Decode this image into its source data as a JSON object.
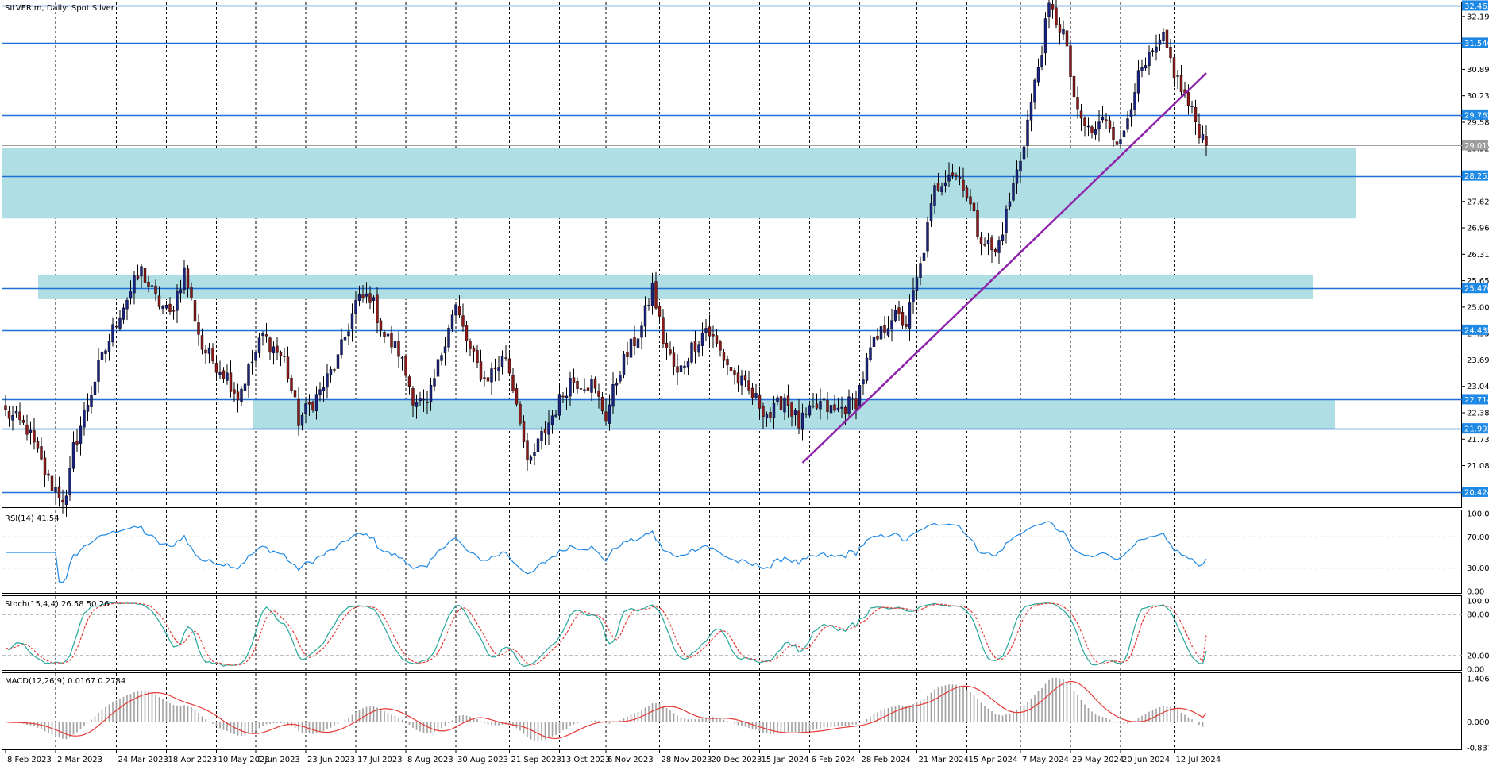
{
  "window_title": "SILVER.m, Daily:  Spot Silver",
  "colors": {
    "background": "#ffffff",
    "grid": "#000000",
    "zone": "#b0dee5",
    "level_line": "#1e6fd6",
    "level_label_bg": "#1e88e5",
    "current_line": "#9e9e9e",
    "trendline": "#8e24aa",
    "bull": "#1a237e",
    "bear": "#8b1a1a",
    "rsi_line": "#1e88e5",
    "stoch_main": "#26a69a",
    "stoch_signal": "#e53935",
    "macd_hist": "#a0a0a0",
    "macd_signal": "#e53935"
  },
  "main_panel": {
    "price_ticks": [
      "32.199",
      "30.891",
      "30.237",
      "29.583",
      "28.929",
      "27.621",
      "26.967",
      "26.313",
      "25.659",
      "25.005",
      "24.351",
      "23.697",
      "23.043",
      "22.389",
      "21.735",
      "21.081"
    ],
    "levels": [
      {
        "price": 32.463,
        "label": "32.463"
      },
      {
        "price": 31.54,
        "label": "31.540"
      },
      {
        "price": 29.762,
        "label": "29.762"
      },
      {
        "price": 28.253,
        "label": "28.253"
      },
      {
        "price": 25.47,
        "label": "25.470"
      },
      {
        "price": 24.435,
        "label": "24.435"
      },
      {
        "price": 22.714,
        "label": "22.714"
      },
      {
        "price": 21.993,
        "label": "21.993"
      },
      {
        "price": 20.424,
        "label": "20.424"
      }
    ],
    "current_price": {
      "price": 29.013,
      "label": "29.013"
    },
    "zones": [
      {
        "from_bar": 0,
        "to_bar": 378,
        "top": 28.95,
        "bottom": 27.2
      },
      {
        "from_bar": 10,
        "to_bar": 366,
        "top": 25.8,
        "bottom": 25.2
      },
      {
        "from_bar": 70,
        "to_bar": 372,
        "top": 22.714,
        "bottom": 21.993
      }
    ],
    "trendline": {
      "from_bar": 223,
      "from_price": 21.15,
      "to_bar": 336,
      "to_price": 30.8
    }
  },
  "x_axis": {
    "labels": [
      {
        "bar": 0,
        "text": "8 Feb 2023"
      },
      {
        "bar": 14,
        "text": "2 Mar 2023"
      },
      {
        "bar": 31,
        "text": "24 Mar 2023"
      },
      {
        "bar": 45,
        "text": "18 Apr 2023"
      },
      {
        "bar": 59,
        "text": "10 May 2023"
      },
      {
        "bar": 70,
        "text": "1 Jun 2023"
      },
      {
        "bar": 84,
        "text": "23 Jun 2023"
      },
      {
        "bar": 98,
        "text": "17 Jul 2023"
      },
      {
        "bar": 112,
        "text": "8 Aug 2023"
      },
      {
        "bar": 126,
        "text": "30 Aug 2023"
      },
      {
        "bar": 141,
        "text": "21 Sep 2023"
      },
      {
        "bar": 155,
        "text": "13 Oct 2023"
      },
      {
        "bar": 168,
        "text": "6 Nov 2023"
      },
      {
        "bar": 183,
        "text": "28 Nov 2023"
      },
      {
        "bar": 197,
        "text": "20 Dec 2023"
      },
      {
        "bar": 211,
        "text": "15 Jan 2024"
      },
      {
        "bar": 225,
        "text": "6 Feb 2024"
      },
      {
        "bar": 239,
        "text": "28 Feb 2024"
      },
      {
        "bar": 255,
        "text": "21 Mar 2024"
      },
      {
        "bar": 269,
        "text": "15 Apr 2024"
      },
      {
        "bar": 284,
        "text": "7 May 2024"
      },
      {
        "bar": 298,
        "text": "29 May 2024"
      },
      {
        "bar": 312,
        "text": "20 Jun 2024"
      },
      {
        "bar": 327,
        "text": "12 Jul 2024"
      }
    ]
  },
  "rsi_panel": {
    "title": "RSI(14) 41.54",
    "ticks": [
      "100.00",
      "70.00",
      "30.00",
      "0.00"
    ]
  },
  "stoch_panel": {
    "title": "Stoch(15,4,4) 26.58 50.26",
    "ticks": [
      "100.00",
      "80.00",
      "20.00",
      "0.00"
    ]
  },
  "macd_panel": {
    "title": "MACD(12,26,9) 0.0167 0.2784",
    "ticks": [
      "1.4065",
      "0.0000",
      "-0.8379"
    ]
  },
  "chart_data": {
    "type": "candlestick",
    "symbol": "SILVER.m",
    "timeframe": "Daily",
    "description": "Spot Silver",
    "y_range": [
      20.05,
      32.55
    ],
    "bars": 337,
    "anchors": [
      [
        0,
        22.4
      ],
      [
        6,
        22.0
      ],
      [
        12,
        20.7
      ],
      [
        17,
        20.2
      ],
      [
        19,
        21.5
      ],
      [
        26,
        23.5
      ],
      [
        32,
        24.9
      ],
      [
        38,
        25.9
      ],
      [
        42,
        25.2
      ],
      [
        46,
        24.8
      ],
      [
        50,
        25.9
      ],
      [
        55,
        24.0
      ],
      [
        62,
        23.3
      ],
      [
        65,
        22.8
      ],
      [
        72,
        24.3
      ],
      [
        78,
        23.7
      ],
      [
        82,
        22.2
      ],
      [
        88,
        22.9
      ],
      [
        93,
        23.7
      ],
      [
        98,
        25.1
      ],
      [
        102,
        25.3
      ],
      [
        106,
        24.3
      ],
      [
        110,
        23.9
      ],
      [
        114,
        22.8
      ],
      [
        118,
        22.5
      ],
      [
        124,
        24.6
      ],
      [
        126,
        25.0
      ],
      [
        130,
        23.9
      ],
      [
        134,
        23.2
      ],
      [
        140,
        23.8
      ],
      [
        144,
        22.3
      ],
      [
        146,
        21.0
      ],
      [
        150,
        21.8
      ],
      [
        154,
        22.5
      ],
      [
        158,
        23.2
      ],
      [
        164,
        23.1
      ],
      [
        168,
        22.3
      ],
      [
        172,
        23.5
      ],
      [
        178,
        24.5
      ],
      [
        181,
        25.5
      ],
      [
        184,
        24.2
      ],
      [
        188,
        23.3
      ],
      [
        192,
        24.0
      ],
      [
        196,
        24.5
      ],
      [
        200,
        23.9
      ],
      [
        204,
        23.3
      ],
      [
        208,
        22.9
      ],
      [
        214,
        22.3
      ],
      [
        218,
        22.8
      ],
      [
        222,
        22.1
      ],
      [
        228,
        22.6
      ],
      [
        232,
        22.4
      ],
      [
        238,
        22.7
      ],
      [
        242,
        23.9
      ],
      [
        248,
        24.8
      ],
      [
        252,
        24.6
      ],
      [
        256,
        26.0
      ],
      [
        260,
        27.9
      ],
      [
        264,
        28.4
      ],
      [
        268,
        28.1
      ],
      [
        272,
        26.9
      ],
      [
        277,
        26.3
      ],
      [
        280,
        27.3
      ],
      [
        284,
        28.7
      ],
      [
        288,
        30.5
      ],
      [
        292,
        32.4
      ],
      [
        296,
        31.8
      ],
      [
        300,
        29.7
      ],
      [
        304,
        29.3
      ],
      [
        308,
        29.7
      ],
      [
        312,
        29.0
      ],
      [
        316,
        30.5
      ],
      [
        320,
        31.1
      ],
      [
        324,
        31.6
      ],
      [
        328,
        30.6
      ],
      [
        332,
        29.8
      ],
      [
        336,
        29.01
      ]
    ],
    "rsi": {
      "range": [
        0,
        100
      ],
      "levels": [
        70,
        30
      ],
      "last": 41.54
    },
    "stochastic": {
      "params": [
        15,
        4,
        4
      ],
      "range": [
        0,
        100
      ],
      "levels": [
        80,
        20
      ],
      "main_last": 26.58,
      "signal_last": 50.26
    },
    "macd": {
      "params": [
        12,
        26,
        9
      ],
      "range": [
        -0.8379,
        1.4065
      ],
      "main_last": 0.0167,
      "signal_last": 0.2784
    }
  }
}
